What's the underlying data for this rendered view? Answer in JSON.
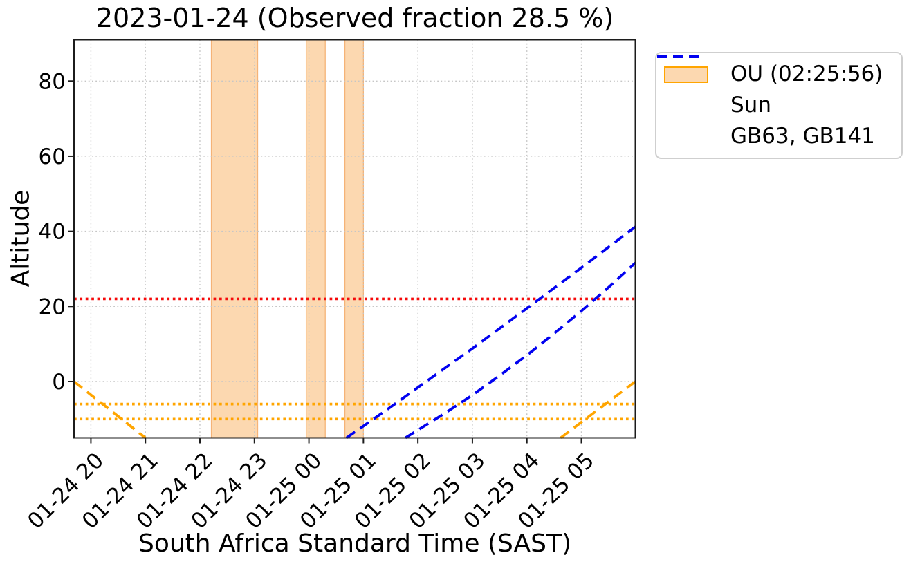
{
  "chart_data": {
    "type": "line",
    "title": "2023-01-24 (Observed fraction 28.5 %)",
    "xlabel": "South Africa Standard Time (SAST)",
    "ylabel": "Altitude",
    "x_axis": {
      "unit": "hours SAST since 2023-01-24 00:00",
      "min": 19.69,
      "max": 29.99,
      "ticks": [
        {
          "t": 20,
          "label": "01-24 20"
        },
        {
          "t": 21,
          "label": "01-24 21"
        },
        {
          "t": 22,
          "label": "01-24 22"
        },
        {
          "t": 23,
          "label": "01-24 23"
        },
        {
          "t": 24,
          "label": "01-25 00"
        },
        {
          "t": 25,
          "label": "01-25 01"
        },
        {
          "t": 26,
          "label": "01-25 02"
        },
        {
          "t": 27,
          "label": "01-25 03"
        },
        {
          "t": 28,
          "label": "01-25 04"
        },
        {
          "t": 29,
          "label": "01-25 05"
        }
      ]
    },
    "y_axis": {
      "min": -15,
      "max": 91,
      "ticks": [
        {
          "v": 0,
          "label": "0"
        },
        {
          "v": 20,
          "label": "20"
        },
        {
          "v": 40,
          "label": "40"
        },
        {
          "v": 60,
          "label": "60"
        },
        {
          "v": 80,
          "label": "80"
        }
      ]
    },
    "grid": {
      "show": true,
      "color": "#c6c6c6",
      "style": "dotted"
    },
    "frame_color": "#1c1c1c",
    "observing_windows": {
      "label": "OU (02:25:56)",
      "fill": "#FCD8B0",
      "edge": "#F5B377",
      "intervals": [
        [
          22.21,
          23.06
        ],
        [
          23.95,
          24.3
        ],
        [
          24.66,
          25.0
        ]
      ]
    },
    "threshold_lines": [
      {
        "name": "min-observing-altitude",
        "value": 22,
        "color": "#F50A0A",
        "style": "dotted"
      },
      {
        "name": "sun-limit-upper",
        "value": -6,
        "color": "#FFA500",
        "style": "dotted"
      },
      {
        "name": "sun-limit-lower",
        "value": -10,
        "color": "#FFA500",
        "style": "dotted"
      }
    ],
    "series": [
      {
        "name": "Sun",
        "color": "#FFA500",
        "style": "dashed",
        "segments": [
          [
            [
              19.69,
              0
            ],
            [
              21.0,
              -15
            ]
          ],
          [
            [
              28.62,
              -15
            ],
            [
              29.99,
              0
            ]
          ]
        ]
      },
      {
        "name": "GB63, GB141",
        "color": "#0202F0",
        "style": "dashed",
        "segments": [
          [
            [
              24.69,
              -15
            ],
            [
              25.5,
              -6.8
            ],
            [
              26.2,
              0.5
            ],
            [
              27.0,
              8.8
            ],
            [
              28.0,
              19.5
            ],
            [
              29.0,
              30.3
            ],
            [
              29.99,
              41.2
            ]
          ],
          [
            [
              25.77,
              -15
            ],
            [
              26.5,
              -8.4
            ],
            [
              27.0,
              -3.6
            ],
            [
              27.5,
              1.6
            ],
            [
              28.0,
              7.0
            ],
            [
              28.5,
              12.8
            ],
            [
              29.0,
              18.8
            ],
            [
              29.5,
              25.1
            ],
            [
              29.99,
              31.6
            ]
          ]
        ]
      }
    ],
    "legend": {
      "position": "outside-top-right",
      "items": [
        {
          "label": "OU (02:25:56)",
          "swatch": "patch"
        },
        {
          "label": "Sun",
          "swatch": "dashed-line"
        },
        {
          "label": "GB63, GB141",
          "swatch": "dashed-line"
        }
      ]
    }
  }
}
